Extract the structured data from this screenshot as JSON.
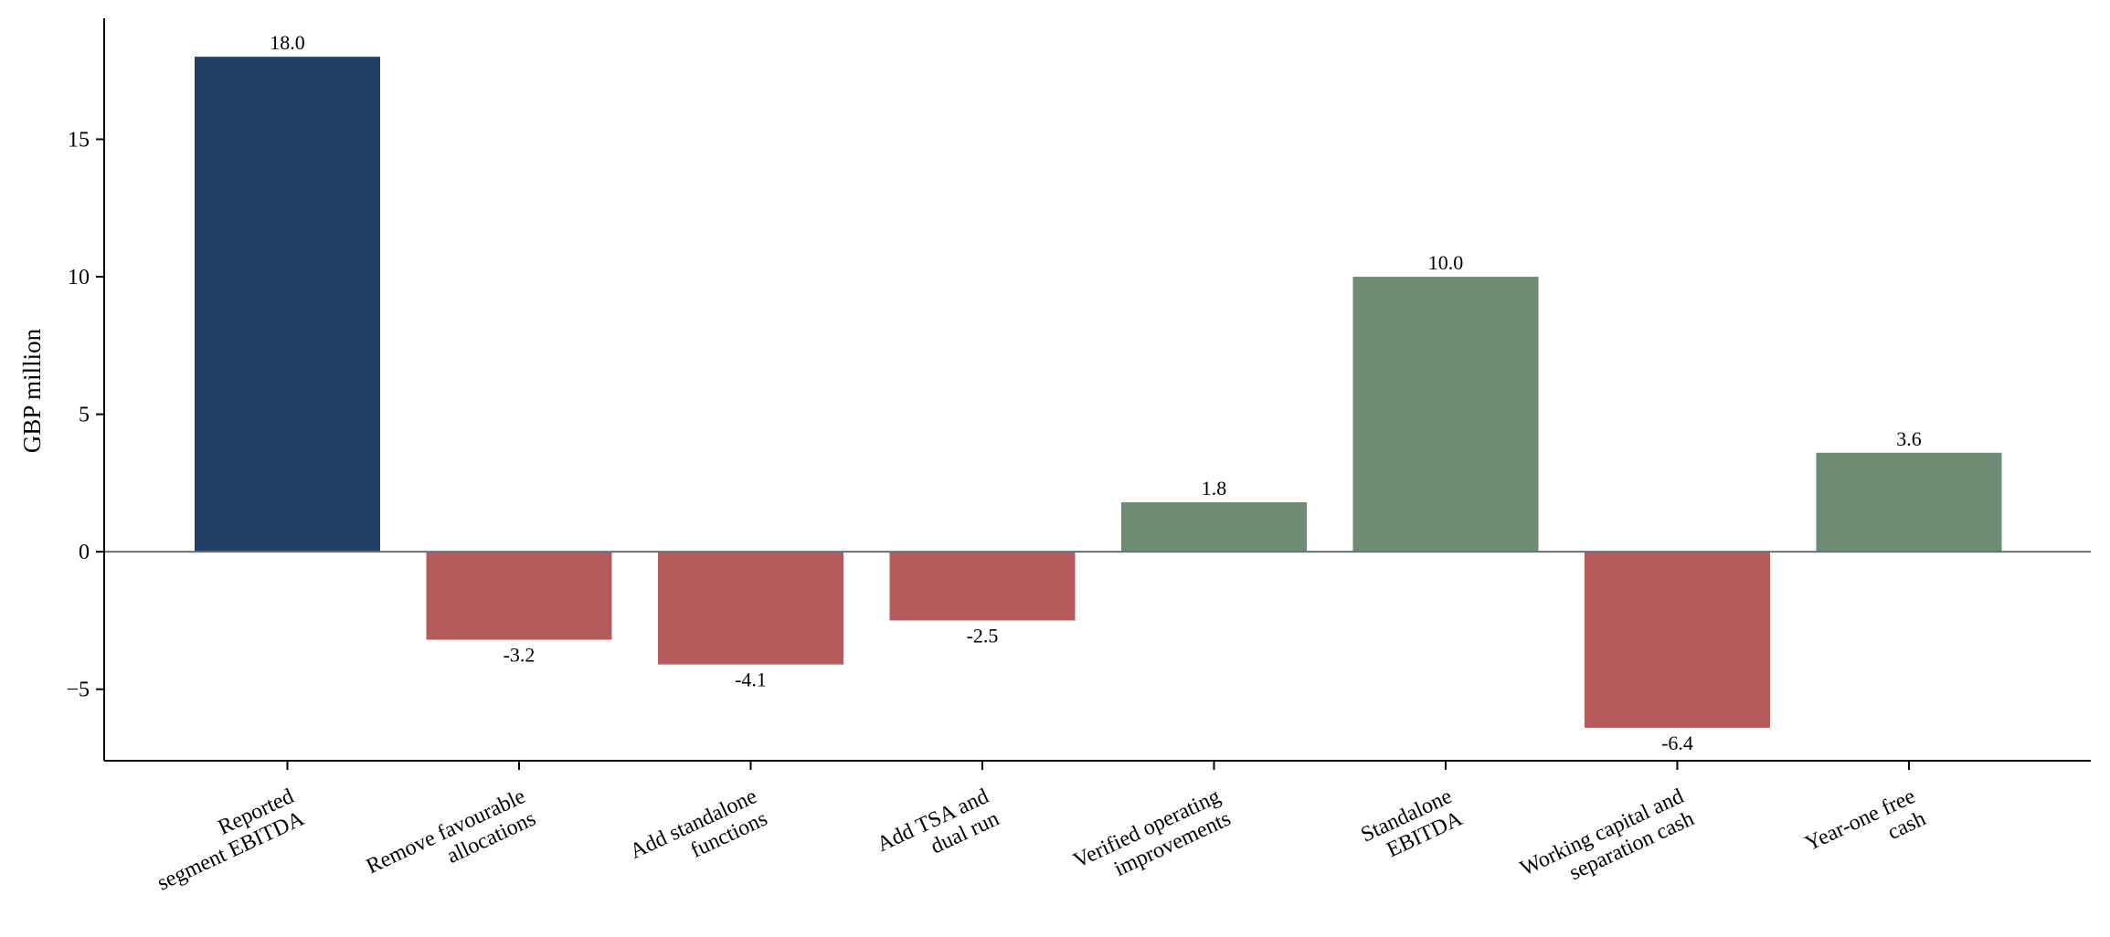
{
  "chart_data": {
    "type": "bar",
    "title": "",
    "xlabel": "",
    "ylabel": "GBP million",
    "ylim": [
      -7.6,
      19.4
    ],
    "yticks": [
      -5,
      0,
      5,
      10,
      15
    ],
    "ytick_labels": [
      "−5",
      "0",
      "5",
      "10",
      "15"
    ],
    "grid": false,
    "legend": "none",
    "categories": [
      "Reported segment EBITDA",
      "Remove favourable allocations",
      "Add standalone functions",
      "Add TSA and dual run",
      "Verified operating improvements",
      "Standalone EBITDA",
      "Working capital and separation cash",
      "Year-one free cash"
    ],
    "category_lines": [
      [
        "Reported",
        "segment EBITDA"
      ],
      [
        "Remove favourable",
        "allocations"
      ],
      [
        "Add standalone",
        "functions"
      ],
      [
        "Add TSA and",
        "dual run"
      ],
      [
        "Verified operating",
        "improvements"
      ],
      [
        "Standalone",
        "EBITDA"
      ],
      [
        "Working capital and",
        "separation cash"
      ],
      [
        "Year-one free",
        "cash"
      ]
    ],
    "values": [
      18.0,
      -3.2,
      -4.1,
      -2.5,
      1.8,
      10.0,
      -6.4,
      3.6
    ],
    "value_labels": [
      "18.0",
      "-3.2",
      "-4.1",
      "-2.5",
      "1.8",
      "10.0",
      "-6.4",
      "3.6"
    ],
    "bar_colors": [
      "#223f66",
      "#b55b5b",
      "#b55b5b",
      "#b55b5b",
      "#6e8c74",
      "#6e8c74",
      "#b55b5b",
      "#6e8c74"
    ],
    "zero_line_color": "#6a6f7a",
    "axis_color": "#000000"
  }
}
